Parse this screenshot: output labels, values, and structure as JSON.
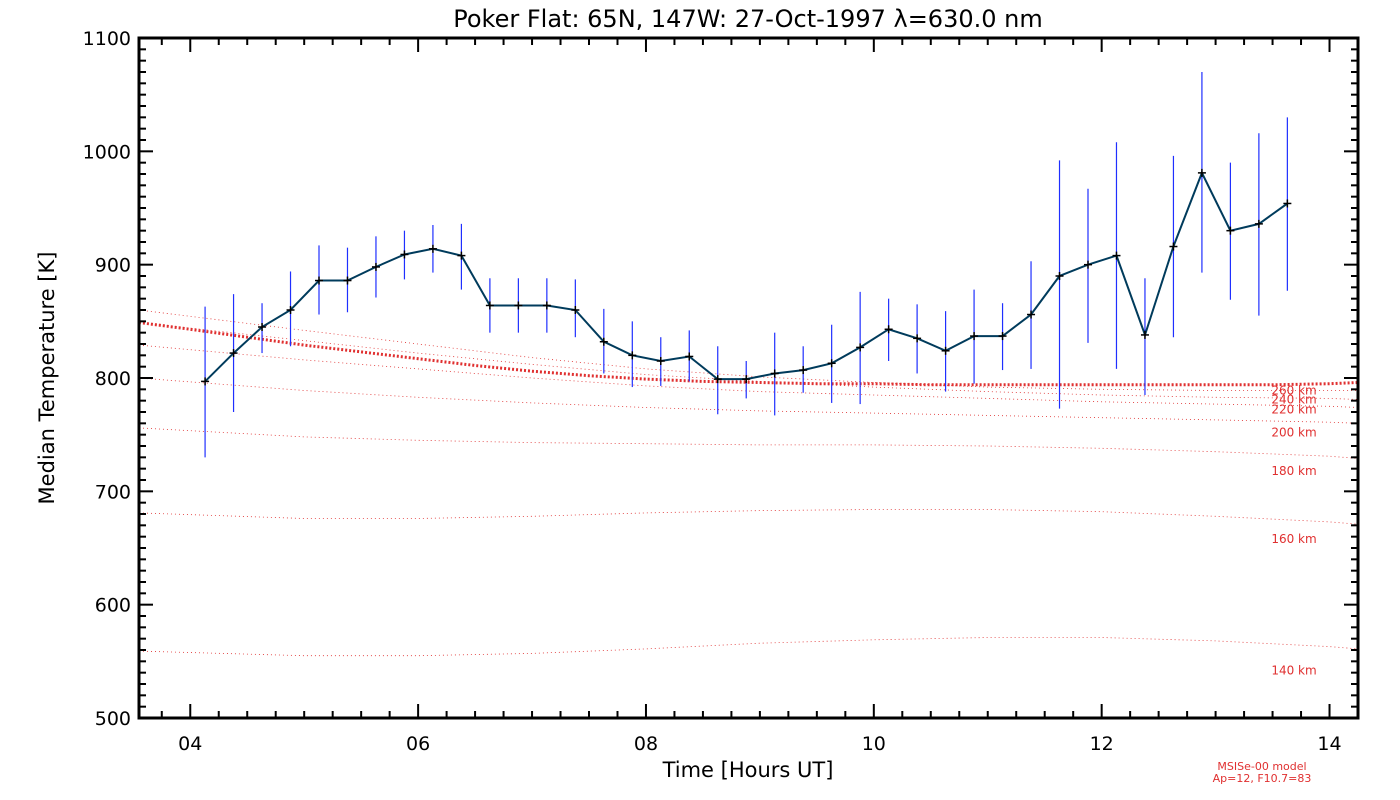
{
  "chart_data": {
    "type": "line",
    "title": "Poker Flat: 65N, 147W: 27-Oct-1997 λ=630.0 nm",
    "xlabel": "Time [Hours UT]",
    "ylabel": "Median Temperature [K]",
    "xlim": [
      3.55,
      14.25
    ],
    "ylim": [
      500,
      1100
    ],
    "x_ticks": [
      4,
      6,
      8,
      10,
      12,
      14
    ],
    "x_tick_labels": [
      "04",
      "06",
      "08",
      "10",
      "12",
      "14"
    ],
    "y_ticks": [
      500,
      600,
      700,
      800,
      900,
      1000,
      1100
    ],
    "y_tick_labels": [
      "500",
      "600",
      "700",
      "800",
      "900",
      "1000",
      "1100"
    ],
    "series": [
      {
        "name": "Median temperature",
        "color": "#003b5c",
        "x": [
          4.13,
          4.38,
          4.63,
          4.88,
          5.13,
          5.38,
          5.63,
          5.88,
          6.13,
          6.38,
          6.63,
          6.88,
          7.13,
          7.38,
          7.63,
          7.88,
          8.13,
          8.38,
          8.63,
          8.88,
          9.13,
          9.38,
          9.63,
          9.88,
          10.13,
          10.38,
          10.63,
          10.88,
          11.13,
          11.38,
          11.63,
          11.88,
          12.13,
          12.38,
          12.63,
          12.88,
          13.13,
          13.38,
          13.63
        ],
        "y": [
          797,
          822,
          845,
          860,
          886,
          886,
          898,
          909,
          914,
          908,
          864,
          864,
          864,
          860,
          832,
          820,
          815,
          819,
          799,
          799,
          804,
          807,
          813,
          827,
          843,
          835,
          824,
          837,
          837,
          856,
          890,
          900,
          908,
          838,
          916,
          981,
          930,
          936,
          954
        ],
        "err_low": [
          730,
          770,
          822,
          828,
          856,
          858,
          871,
          887,
          893,
          878,
          840,
          840,
          840,
          836,
          804,
          792,
          793,
          797,
          768,
          782,
          767,
          787,
          778,
          777,
          815,
          804,
          788,
          795,
          807,
          808,
          773,
          831,
          808,
          785,
          836,
          893,
          869,
          855,
          877
        ],
        "err_high": [
          863,
          874,
          866,
          894,
          917,
          915,
          925,
          930,
          935,
          936,
          888,
          888,
          888,
          887,
          861,
          850,
          836,
          842,
          828,
          815,
          840,
          828,
          847,
          876,
          870,
          865,
          859,
          878,
          866,
          903,
          992,
          967,
          1008,
          888,
          996,
          1070,
          990,
          1016,
          1030
        ]
      }
    ],
    "model_curve": {
      "name": "MSISe-00 model (emission-weighted)",
      "color": "#e03030",
      "x": [
        3.55,
        4,
        4.5,
        5,
        5.5,
        6,
        6.5,
        7,
        7.5,
        8,
        8.5,
        9,
        9.5,
        10,
        10.5,
        11,
        11.5,
        12,
        12.5,
        13,
        13.5,
        14,
        14.25
      ],
      "y": [
        849,
        843,
        836,
        829,
        823,
        817,
        811,
        806,
        802,
        799,
        797,
        796,
        795,
        795,
        794,
        794,
        794,
        794,
        794,
        794,
        794,
        795,
        796
      ]
    },
    "altitude_curves": [
      {
        "label": "140 km",
        "label_y": 542,
        "x": [
          3.55,
          5,
          6,
          7,
          8,
          9,
          10,
          11,
          12,
          13,
          14,
          14.25
        ],
        "y": [
          559,
          555,
          555,
          557,
          561,
          566,
          569,
          571,
          571,
          568,
          563,
          561
        ]
      },
      {
        "label": "160 km",
        "label_y": 658,
        "x": [
          3.55,
          5,
          6,
          7,
          8,
          9,
          10,
          11,
          12,
          13,
          14,
          14.25
        ],
        "y": [
          681,
          676,
          676,
          678,
          681,
          683,
          684,
          684,
          682,
          678,
          673,
          671
        ]
      },
      {
        "label": "180 km",
        "label_y": 718,
        "x": [
          3.55,
          5,
          6,
          7,
          8,
          9,
          10,
          11,
          12,
          13,
          14,
          14.25
        ],
        "y": [
          756,
          748,
          745,
          743,
          742,
          741,
          741,
          740,
          738,
          735,
          731,
          729
        ]
      },
      {
        "label": "200 km",
        "label_y": 752,
        "x": [
          3.55,
          5,
          6,
          7,
          8,
          9,
          10,
          11,
          12,
          13,
          14,
          14.25
        ],
        "y": [
          800,
          789,
          783,
          778,
          774,
          771,
          769,
          767,
          765,
          763,
          761,
          760
        ]
      },
      {
        "label": "220 km",
        "label_y": 772,
        "x": [
          3.55,
          5,
          6,
          7,
          8,
          9,
          10,
          11,
          12,
          13,
          14,
          14.25
        ],
        "y": [
          829,
          816,
          808,
          800,
          793,
          788,
          785,
          782,
          779,
          777,
          775,
          774
        ]
      },
      {
        "label": "240 km",
        "label_y": 781,
        "x": [
          3.55,
          5,
          6,
          7,
          8,
          9,
          10,
          11,
          12,
          13,
          14,
          14.25
        ],
        "y": [
          849,
          833,
          822,
          812,
          803,
          797,
          792,
          788,
          785,
          783,
          782,
          781
        ]
      },
      {
        "label": "260 km",
        "label_y": 789,
        "x": [
          3.55,
          5,
          6,
          7,
          8,
          9,
          10,
          11,
          12,
          13,
          14,
          14.25
        ],
        "y": [
          860,
          842,
          830,
          818,
          808,
          801,
          796,
          792,
          790,
          789,
          789,
          789
        ]
      }
    ],
    "model_note": [
      "MSISe-00 model",
      "Ap=12, F10.7=83"
    ]
  }
}
